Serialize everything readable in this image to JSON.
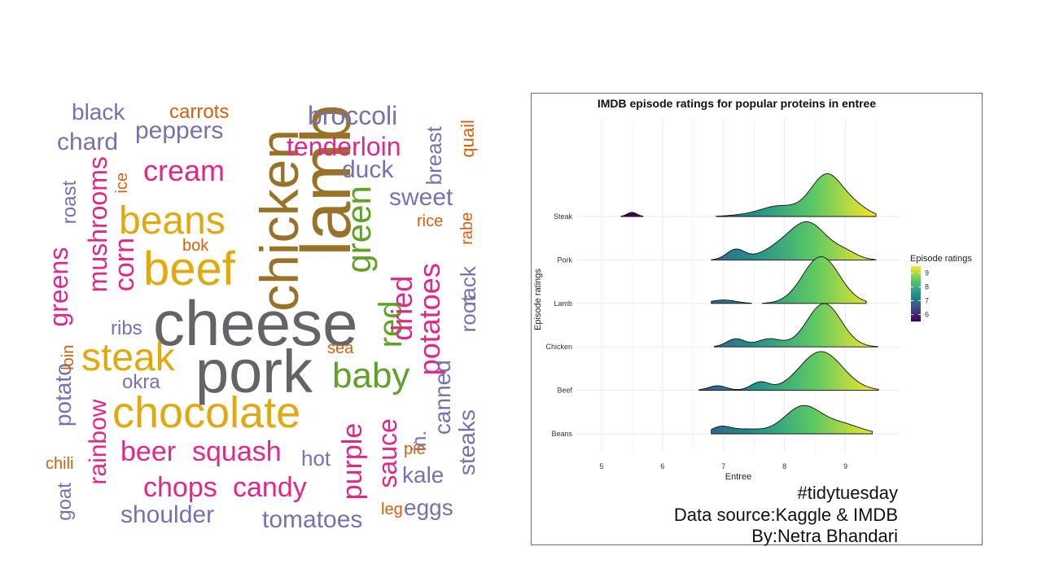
{
  "wordcloud": {
    "words": [
      {
        "text": "cheese",
        "color": "#626467"
      },
      {
        "text": "pork",
        "color": "#626467"
      },
      {
        "text": "lamb",
        "color": "#9a7226"
      },
      {
        "text": "chicken",
        "color": "#9a7226"
      },
      {
        "text": "beef",
        "color": "#e2a90f"
      },
      {
        "text": "beans",
        "color": "#e2a90f"
      },
      {
        "text": "chocolate",
        "color": "#e2a90f"
      },
      {
        "text": "steak",
        "color": "#e2a90f"
      },
      {
        "text": "green",
        "color": "#5fa227"
      },
      {
        "text": "baby",
        "color": "#5fa227"
      },
      {
        "text": "red",
        "color": "#5fa227"
      },
      {
        "text": "dried",
        "color": "#e0288a"
      },
      {
        "text": "potatoes",
        "color": "#e0288a"
      },
      {
        "text": "tenderloin",
        "color": "#e0288a"
      },
      {
        "text": "cream",
        "color": "#e0288a"
      },
      {
        "text": "mushrooms",
        "color": "#e0288a"
      },
      {
        "text": "greens",
        "color": "#e0288a"
      },
      {
        "text": "corn",
        "color": "#e0288a"
      },
      {
        "text": "beer",
        "color": "#e0288a"
      },
      {
        "text": "squash",
        "color": "#e0288a"
      },
      {
        "text": "chops",
        "color": "#e0288a"
      },
      {
        "text": "candy",
        "color": "#e0288a"
      },
      {
        "text": "purple",
        "color": "#e0288a"
      },
      {
        "text": "sauce",
        "color": "#e0288a"
      },
      {
        "text": "rainbow",
        "color": "#e0288a"
      },
      {
        "text": "black",
        "color": "#7571b4"
      },
      {
        "text": "chard",
        "color": "#7571b4"
      },
      {
        "text": "peppers",
        "color": "#7571b4"
      },
      {
        "text": "broccoli",
        "color": "#7571b4"
      },
      {
        "text": "duck",
        "color": "#7571b4"
      },
      {
        "text": "sweet",
        "color": "#7571b4"
      },
      {
        "text": "breast",
        "color": "#7571b4"
      },
      {
        "text": "roast",
        "color": "#7571b4"
      },
      {
        "text": "ribs",
        "color": "#7571b4"
      },
      {
        "text": "okra",
        "color": "#7571b4"
      },
      {
        "text": "potato",
        "color": "#7571b4"
      },
      {
        "text": "goat",
        "color": "#7571b4"
      },
      {
        "text": "shoulder",
        "color": "#7571b4"
      },
      {
        "text": "tomatoes",
        "color": "#7571b4"
      },
      {
        "text": "eggs",
        "color": "#7571b4"
      },
      {
        "text": "kale",
        "color": "#7571b4"
      },
      {
        "text": "canned",
        "color": "#7571b4"
      },
      {
        "text": "steaks",
        "color": "#7571b4"
      },
      {
        "text": "in.",
        "color": "#7571b4"
      },
      {
        "text": "root",
        "color": "#7571b4"
      },
      {
        "text": "rack",
        "color": "#7571b4"
      },
      {
        "text": "hot",
        "color": "#7571b4"
      },
      {
        "text": "carrots",
        "color": "#d95f0e"
      },
      {
        "text": "quail",
        "color": "#d95f0e"
      },
      {
        "text": "ice",
        "color": "#d95f0e"
      },
      {
        "text": "rice",
        "color": "#d95f0e"
      },
      {
        "text": "rabe",
        "color": "#d95f0e"
      },
      {
        "text": "bok",
        "color": "#d95f0e"
      },
      {
        "text": "loin",
        "color": "#d95f0e"
      },
      {
        "text": "sea",
        "color": "#d95f0e"
      },
      {
        "text": "pie",
        "color": "#d95f0e"
      },
      {
        "text": "chili",
        "color": "#d95f0e"
      },
      {
        "text": "leg",
        "color": "#d95f0e"
      }
    ]
  },
  "chart_data": {
    "type": "ridgeline",
    "title": "IMDB episode ratings for popular proteins in entree",
    "xlabel": "Entree",
    "ylabel": "Episode ratings",
    "xlim": [
      4.6,
      9.9
    ],
    "x_ticks": [
      5,
      6,
      7,
      8,
      9
    ],
    "grid": true,
    "categories": [
      "Beans",
      "Beef",
      "Chicken",
      "Lamb",
      "Pork",
      "Steak"
    ],
    "series": [
      {
        "name": "Beans",
        "range": [
          6.8,
          9.45
        ],
        "peaks": [
          {
            "x": 6.95,
            "h": 0.25,
            "w": 0.15
          },
          {
            "x": 7.35,
            "h": 0.2,
            "w": 0.3
          },
          {
            "x": 8.3,
            "h": 1.2,
            "w": 0.3
          },
          {
            "x": 8.95,
            "h": 0.4,
            "w": 0.3
          }
        ]
      },
      {
        "name": "Beef",
        "range": [
          6.6,
          9.55
        ],
        "peaks": [
          {
            "x": 6.9,
            "h": 0.2,
            "w": 0.15
          },
          {
            "x": 7.6,
            "h": 0.35,
            "w": 0.15
          },
          {
            "x": 8.6,
            "h": 1.7,
            "w": 0.35
          }
        ]
      },
      {
        "name": "Chicken",
        "range": [
          6.85,
          9.55
        ],
        "peaks": [
          {
            "x": 7.2,
            "h": 0.35,
            "w": 0.15
          },
          {
            "x": 7.75,
            "h": 0.35,
            "w": 0.2
          },
          {
            "x": 8.65,
            "h": 1.9,
            "w": 0.28
          }
        ]
      },
      {
        "name": "Lamb",
        "range": [
          6.8,
          9.35
        ],
        "peaks": [
          {
            "x": 7.0,
            "h": 0.15,
            "w": 0.2
          },
          {
            "x": 8.6,
            "h": 2.05,
            "w": 0.3
          }
        ]
      },
      {
        "name": "Pork",
        "range": [
          6.8,
          9.5
        ],
        "peaks": [
          {
            "x": 7.2,
            "h": 0.45,
            "w": 0.15
          },
          {
            "x": 7.9,
            "h": 0.45,
            "w": 0.3
          },
          {
            "x": 8.4,
            "h": 1.55,
            "w": 0.3
          },
          {
            "x": 9.0,
            "h": 0.3,
            "w": 0.2
          }
        ]
      },
      {
        "name": "Steak",
        "range": [
          5.3,
          9.5
        ],
        "peaks": [
          {
            "x": 5.5,
            "h": 0.18,
            "w": 0.08
          },
          {
            "x": 7.3,
            "h": 0.05,
            "w": 0.25
          },
          {
            "x": 7.9,
            "h": 0.45,
            "w": 0.3
          },
          {
            "x": 8.7,
            "h": 1.85,
            "w": 0.27
          },
          {
            "x": 9.2,
            "h": 0.3,
            "w": 0.2
          }
        ]
      }
    ],
    "color_legend": {
      "title": "Episode ratings",
      "ticks": [
        6,
        7,
        8,
        9
      ],
      "range": [
        5.5,
        9.5
      ],
      "palette": [
        "#440154",
        "#3b528b",
        "#21918c",
        "#5ec962",
        "#fde725"
      ]
    }
  },
  "credits": {
    "hashtag": "#tidytuesday",
    "source": "Data source:Kaggle & IMDB",
    "author": "By:Netra Bhandari"
  }
}
